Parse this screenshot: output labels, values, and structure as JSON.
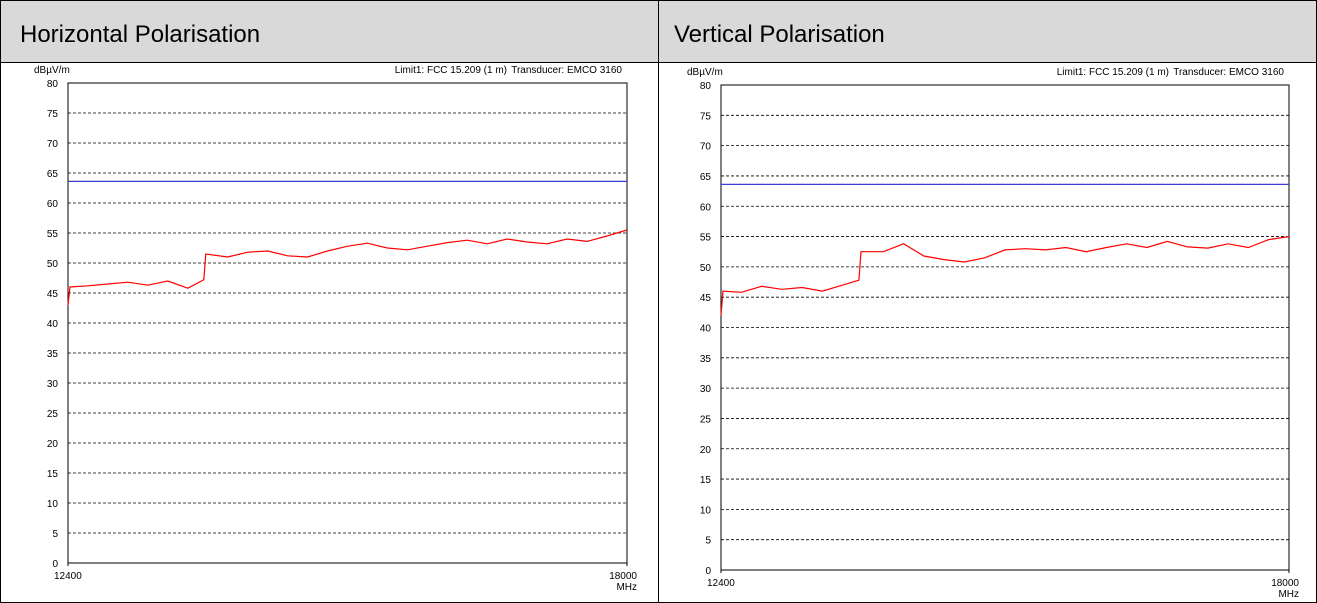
{
  "chart_data": [
    {
      "type": "line",
      "title": "Horizontal Polarisation",
      "ylabel": "dBµV/m",
      "xlabel": "MHz",
      "annotations": [
        "Limit1: FCC 15.209 (1 m)",
        "Transducer: EMCO 3160"
      ],
      "xlim": [
        12400,
        18000
      ],
      "xticks": [
        12400,
        18000
      ],
      "ylim": [
        0,
        80
      ],
      "yticks": [
        0,
        5,
        10,
        15,
        20,
        25,
        30,
        35,
        40,
        45,
        50,
        55,
        60,
        65,
        70,
        75,
        80
      ],
      "grid": true,
      "series": [
        {
          "name": "Limit1: FCC 15.209 (1 m)",
          "color": "#3b3bd6",
          "x": [
            12400,
            18000
          ],
          "values": [
            63.6,
            63.6
          ]
        },
        {
          "color": "#ff0000",
          "x": [
            12400,
            12420,
            12600,
            12800,
            13000,
            13200,
            13400,
            13600,
            13760,
            13780,
            14000,
            14200,
            14400,
            14600,
            14800,
            15000,
            15200,
            15400,
            15600,
            15800,
            16000,
            16200,
            16400,
            16600,
            16800,
            17000,
            17200,
            17400,
            17600,
            17800,
            18000
          ],
          "values": [
            43,
            46,
            46.2,
            46.5,
            46.8,
            46.3,
            47,
            45.8,
            47.2,
            51.5,
            51,
            51.8,
            52,
            51.2,
            51,
            52,
            52.8,
            53.3,
            52.5,
            52.2,
            52.8,
            53.4,
            53.8,
            53.2,
            54,
            53.5,
            53.2,
            54,
            53.6,
            54.5,
            55.5
          ]
        }
      ]
    },
    {
      "type": "line",
      "title": "Vertical Polarisation",
      "ylabel": "dBµV/m",
      "xlabel": "MHz",
      "annotations": [
        "Limit1: FCC 15.209 (1 m)",
        "Transducer: EMCO 3160"
      ],
      "xlim": [
        12400,
        18000
      ],
      "xticks": [
        12400,
        18000
      ],
      "ylim": [
        0,
        80
      ],
      "yticks": [
        0,
        5,
        10,
        15,
        20,
        25,
        30,
        35,
        40,
        45,
        50,
        55,
        60,
        65,
        70,
        75,
        80
      ],
      "grid": true,
      "series": [
        {
          "name": "Limit1: FCC 15.209 (1 m)",
          "color": "#3b3bd6",
          "x": [
            12400,
            18000
          ],
          "values": [
            63.6,
            63.6
          ]
        },
        {
          "color": "#ff0000",
          "x": [
            12400,
            12420,
            12600,
            12800,
            13000,
            13200,
            13400,
            13600,
            13760,
            13780,
            14000,
            14200,
            14400,
            14600,
            14800,
            15000,
            15200,
            15400,
            15600,
            15800,
            16000,
            16200,
            16400,
            16600,
            16800,
            17000,
            17200,
            17400,
            17600,
            17800,
            18000
          ],
          "values": [
            42,
            46,
            45.8,
            46.8,
            46.3,
            46.6,
            46,
            47,
            47.8,
            52.5,
            52.5,
            53.8,
            51.8,
            51.2,
            50.8,
            51.5,
            52.8,
            53,
            52.8,
            53.2,
            52.5,
            53.2,
            53.8,
            53.2,
            54.2,
            53.3,
            53.1,
            53.8,
            53.2,
            54.5,
            55
          ]
        }
      ]
    }
  ]
}
